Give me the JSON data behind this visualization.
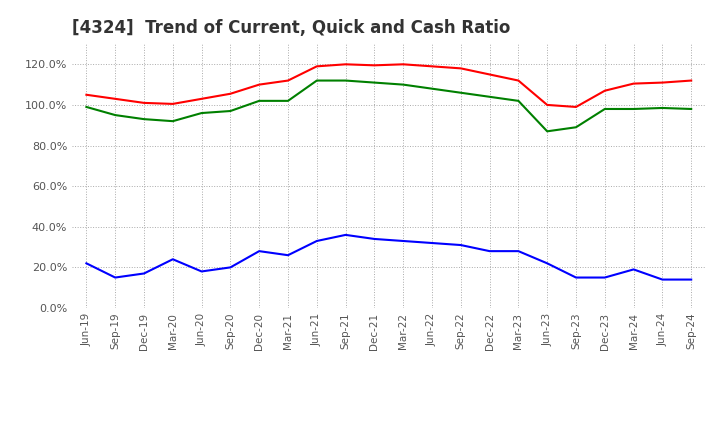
{
  "title": "[4324]  Trend of Current, Quick and Cash Ratio",
  "x_labels": [
    "Jun-19",
    "Sep-19",
    "Dec-19",
    "Mar-20",
    "Jun-20",
    "Sep-20",
    "Dec-20",
    "Mar-21",
    "Jun-21",
    "Sep-21",
    "Dec-21",
    "Mar-22",
    "Jun-22",
    "Sep-22",
    "Dec-22",
    "Mar-23",
    "Jun-23",
    "Sep-23",
    "Dec-23",
    "Mar-24",
    "Jun-24",
    "Sep-24"
  ],
  "current_ratio": [
    105.0,
    103.0,
    101.0,
    100.5,
    103.0,
    105.5,
    110.0,
    112.0,
    119.0,
    120.0,
    119.5,
    120.0,
    119.0,
    118.0,
    115.0,
    112.0,
    100.0,
    99.0,
    107.0,
    110.5,
    111.0,
    112.0
  ],
  "quick_ratio": [
    99.0,
    95.0,
    93.0,
    92.0,
    96.0,
    97.0,
    102.0,
    102.0,
    112.0,
    112.0,
    111.0,
    110.0,
    108.0,
    106.0,
    104.0,
    102.0,
    87.0,
    89.0,
    98.0,
    98.0,
    98.5,
    98.0
  ],
  "cash_ratio": [
    22.0,
    15.0,
    17.0,
    24.0,
    18.0,
    20.0,
    28.0,
    26.0,
    33.0,
    36.0,
    34.0,
    33.0,
    32.0,
    31.0,
    28.0,
    28.0,
    22.0,
    15.0,
    15.0,
    19.0,
    14.0,
    14.0
  ],
  "current_color": "#ff0000",
  "quick_color": "#008000",
  "cash_color": "#0000ff",
  "ylim": [
    0,
    130
  ],
  "yticks": [
    0,
    20,
    40,
    60,
    80,
    100,
    120
  ],
  "background_color": "#ffffff",
  "grid_color": "#aaaaaa",
  "title_fontsize": 12,
  "line_width": 1.5
}
